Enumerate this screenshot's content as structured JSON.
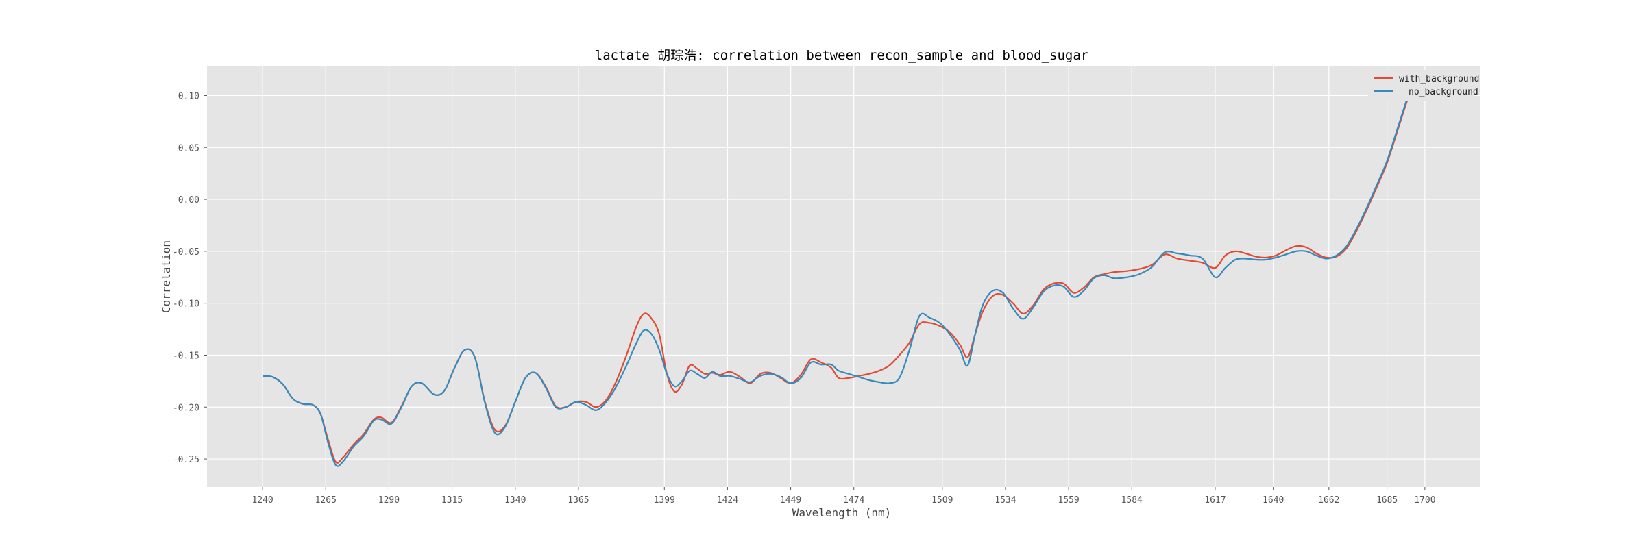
{
  "chart_data": {
    "type": "line",
    "title": "lactate 胡琮浩: correlation between recon_sample and blood_sugar",
    "xlabel": "Wavelength (nm)",
    "ylabel": "Correlation",
    "xlim": [
      1218,
      1722
    ],
    "ylim": [
      -0.277,
      0.128
    ],
    "grid": true,
    "legend_position": "top-right",
    "x_ticks": [
      1240,
      1265,
      1290,
      1315,
      1340,
      1365,
      1399,
      1424,
      1449,
      1474,
      1509,
      1534,
      1559,
      1584,
      1617,
      1640,
      1662,
      1685,
      1700
    ],
    "y_ticks": [
      -0.25,
      -0.2,
      -0.15,
      -0.1,
      -0.05,
      0.0,
      0.05,
      0.1
    ],
    "y_tick_labels": [
      "-0.25",
      "-0.20",
      "-0.15",
      "-0.10",
      "-0.05",
      "0.00",
      "0.05",
      "0.10"
    ],
    "series": [
      {
        "name": "with_background",
        "color": "#E24A33",
        "points": [
          [
            1240,
            -0.17
          ],
          [
            1244,
            -0.171
          ],
          [
            1248,
            -0.178
          ],
          [
            1252,
            -0.192
          ],
          [
            1256,
            -0.197
          ],
          [
            1260,
            -0.198
          ],
          [
            1263,
            -0.207
          ],
          [
            1266,
            -0.232
          ],
          [
            1269,
            -0.253
          ],
          [
            1272,
            -0.248
          ],
          [
            1276,
            -0.236
          ],
          [
            1280,
            -0.226
          ],
          [
            1284,
            -0.212
          ],
          [
            1287,
            -0.21
          ],
          [
            1291,
            -0.215
          ],
          [
            1295,
            -0.199
          ],
          [
            1299,
            -0.18
          ],
          [
            1303,
            -0.177
          ],
          [
            1308,
            -0.188
          ],
          [
            1312,
            -0.184
          ],
          [
            1316,
            -0.162
          ],
          [
            1320,
            -0.145
          ],
          [
            1324,
            -0.152
          ],
          [
            1328,
            -0.195
          ],
          [
            1332,
            -0.222
          ],
          [
            1336,
            -0.218
          ],
          [
            1340,
            -0.195
          ],
          [
            1344,
            -0.172
          ],
          [
            1348,
            -0.167
          ],
          [
            1352,
            -0.18
          ],
          [
            1356,
            -0.199
          ],
          [
            1360,
            -0.2
          ],
          [
            1364,
            -0.195
          ],
          [
            1368,
            -0.195
          ],
          [
            1372,
            -0.2
          ],
          [
            1376,
            -0.193
          ],
          [
            1380,
            -0.175
          ],
          [
            1384,
            -0.15
          ],
          [
            1388,
            -0.122
          ],
          [
            1391,
            -0.11
          ],
          [
            1394,
            -0.115
          ],
          [
            1397,
            -0.13
          ],
          [
            1400,
            -0.168
          ],
          [
            1403,
            -0.185
          ],
          [
            1406,
            -0.178
          ],
          [
            1409,
            -0.16
          ],
          [
            1412,
            -0.163
          ],
          [
            1415,
            -0.168
          ],
          [
            1418,
            -0.167
          ],
          [
            1421,
            -0.169
          ],
          [
            1425,
            -0.166
          ],
          [
            1429,
            -0.171
          ],
          [
            1433,
            -0.177
          ],
          [
            1437,
            -0.168
          ],
          [
            1441,
            -0.167
          ],
          [
            1445,
            -0.172
          ],
          [
            1449,
            -0.177
          ],
          [
            1453,
            -0.169
          ],
          [
            1457,
            -0.154
          ],
          [
            1461,
            -0.157
          ],
          [
            1465,
            -0.162
          ],
          [
            1468,
            -0.172
          ],
          [
            1472,
            -0.172
          ],
          [
            1476,
            -0.17
          ],
          [
            1480,
            -0.168
          ],
          [
            1484,
            -0.165
          ],
          [
            1488,
            -0.16
          ],
          [
            1492,
            -0.15
          ],
          [
            1496,
            -0.138
          ],
          [
            1500,
            -0.12
          ],
          [
            1504,
            -0.119
          ],
          [
            1508,
            -0.122
          ],
          [
            1512,
            -0.128
          ],
          [
            1516,
            -0.14
          ],
          [
            1519,
            -0.152
          ],
          [
            1522,
            -0.13
          ],
          [
            1525,
            -0.108
          ],
          [
            1529,
            -0.093
          ],
          [
            1533,
            -0.092
          ],
          [
            1537,
            -0.1
          ],
          [
            1541,
            -0.11
          ],
          [
            1545,
            -0.102
          ],
          [
            1549,
            -0.087
          ],
          [
            1553,
            -0.081
          ],
          [
            1557,
            -0.081
          ],
          [
            1561,
            -0.09
          ],
          [
            1565,
            -0.085
          ],
          [
            1569,
            -0.075
          ],
          [
            1573,
            -0.072
          ],
          [
            1577,
            -0.07
          ],
          [
            1582,
            -0.069
          ],
          [
            1587,
            -0.067
          ],
          [
            1592,
            -0.063
          ],
          [
            1597,
            -0.053
          ],
          [
            1602,
            -0.057
          ],
          [
            1607,
            -0.059
          ],
          [
            1612,
            -0.061
          ],
          [
            1617,
            -0.066
          ],
          [
            1621,
            -0.054
          ],
          [
            1625,
            -0.05
          ],
          [
            1629,
            -0.052
          ],
          [
            1633,
            -0.055
          ],
          [
            1637,
            -0.056
          ],
          [
            1641,
            -0.054
          ],
          [
            1645,
            -0.049
          ],
          [
            1649,
            -0.045
          ],
          [
            1653,
            -0.046
          ],
          [
            1657,
            -0.052
          ],
          [
            1661,
            -0.056
          ],
          [
            1665,
            -0.055
          ],
          [
            1669,
            -0.047
          ],
          [
            1673,
            -0.03
          ],
          [
            1677,
            -0.01
          ],
          [
            1681,
            0.012
          ],
          [
            1685,
            0.035
          ],
          [
            1689,
            0.065
          ],
          [
            1693,
            0.095
          ],
          [
            1696,
            0.112
          ],
          [
            1698,
            0.121
          ]
        ]
      },
      {
        "name": "no_background",
        "color": "#348ABD",
        "points": [
          [
            1240,
            -0.17
          ],
          [
            1244,
            -0.171
          ],
          [
            1248,
            -0.178
          ],
          [
            1252,
            -0.192
          ],
          [
            1256,
            -0.197
          ],
          [
            1260,
            -0.198
          ],
          [
            1263,
            -0.207
          ],
          [
            1266,
            -0.235
          ],
          [
            1269,
            -0.256
          ],
          [
            1272,
            -0.252
          ],
          [
            1276,
            -0.238
          ],
          [
            1280,
            -0.228
          ],
          [
            1284,
            -0.213
          ],
          [
            1287,
            -0.212
          ],
          [
            1291,
            -0.216
          ],
          [
            1295,
            -0.2
          ],
          [
            1299,
            -0.18
          ],
          [
            1303,
            -0.177
          ],
          [
            1308,
            -0.188
          ],
          [
            1312,
            -0.184
          ],
          [
            1316,
            -0.162
          ],
          [
            1320,
            -0.145
          ],
          [
            1324,
            -0.152
          ],
          [
            1328,
            -0.196
          ],
          [
            1332,
            -0.225
          ],
          [
            1336,
            -0.219
          ],
          [
            1340,
            -0.195
          ],
          [
            1344,
            -0.172
          ],
          [
            1348,
            -0.167
          ],
          [
            1352,
            -0.181
          ],
          [
            1356,
            -0.2
          ],
          [
            1360,
            -0.2
          ],
          [
            1364,
            -0.195
          ],
          [
            1368,
            -0.198
          ],
          [
            1372,
            -0.203
          ],
          [
            1376,
            -0.195
          ],
          [
            1380,
            -0.18
          ],
          [
            1384,
            -0.16
          ],
          [
            1388,
            -0.138
          ],
          [
            1391,
            -0.126
          ],
          [
            1394,
            -0.13
          ],
          [
            1397,
            -0.145
          ],
          [
            1400,
            -0.168
          ],
          [
            1403,
            -0.18
          ],
          [
            1406,
            -0.175
          ],
          [
            1409,
            -0.165
          ],
          [
            1412,
            -0.168
          ],
          [
            1415,
            -0.172
          ],
          [
            1418,
            -0.166
          ],
          [
            1421,
            -0.17
          ],
          [
            1425,
            -0.17
          ],
          [
            1429,
            -0.173
          ],
          [
            1433,
            -0.176
          ],
          [
            1437,
            -0.17
          ],
          [
            1441,
            -0.168
          ],
          [
            1445,
            -0.171
          ],
          [
            1449,
            -0.177
          ],
          [
            1453,
            -0.172
          ],
          [
            1457,
            -0.157
          ],
          [
            1461,
            -0.159
          ],
          [
            1465,
            -0.159
          ],
          [
            1468,
            -0.165
          ],
          [
            1472,
            -0.168
          ],
          [
            1476,
            -0.171
          ],
          [
            1480,
            -0.174
          ],
          [
            1484,
            -0.176
          ],
          [
            1488,
            -0.177
          ],
          [
            1492,
            -0.172
          ],
          [
            1496,
            -0.145
          ],
          [
            1500,
            -0.112
          ],
          [
            1504,
            -0.114
          ],
          [
            1508,
            -0.119
          ],
          [
            1512,
            -0.13
          ],
          [
            1516,
            -0.145
          ],
          [
            1519,
            -0.16
          ],
          [
            1522,
            -0.13
          ],
          [
            1525,
            -0.102
          ],
          [
            1529,
            -0.088
          ],
          [
            1533,
            -0.09
          ],
          [
            1537,
            -0.105
          ],
          [
            1541,
            -0.115
          ],
          [
            1545,
            -0.104
          ],
          [
            1549,
            -0.089
          ],
          [
            1553,
            -0.083
          ],
          [
            1557,
            -0.084
          ],
          [
            1561,
            -0.094
          ],
          [
            1565,
            -0.088
          ],
          [
            1569,
            -0.076
          ],
          [
            1573,
            -0.073
          ],
          [
            1577,
            -0.076
          ],
          [
            1582,
            -0.075
          ],
          [
            1587,
            -0.072
          ],
          [
            1592,
            -0.065
          ],
          [
            1597,
            -0.051
          ],
          [
            1602,
            -0.052
          ],
          [
            1607,
            -0.054
          ],
          [
            1612,
            -0.057
          ],
          [
            1617,
            -0.075
          ],
          [
            1621,
            -0.066
          ],
          [
            1625,
            -0.058
          ],
          [
            1629,
            -0.057
          ],
          [
            1633,
            -0.058
          ],
          [
            1637,
            -0.058
          ],
          [
            1641,
            -0.056
          ],
          [
            1645,
            -0.053
          ],
          [
            1649,
            -0.05
          ],
          [
            1653,
            -0.05
          ],
          [
            1657,
            -0.054
          ],
          [
            1661,
            -0.057
          ],
          [
            1665,
            -0.054
          ],
          [
            1669,
            -0.045
          ],
          [
            1673,
            -0.028
          ],
          [
            1677,
            -0.008
          ],
          [
            1681,
            0.014
          ],
          [
            1685,
            0.037
          ],
          [
            1689,
            0.067
          ],
          [
            1693,
            0.097
          ],
          [
            1696,
            0.114
          ],
          [
            1698,
            0.123
          ]
        ]
      }
    ]
  }
}
